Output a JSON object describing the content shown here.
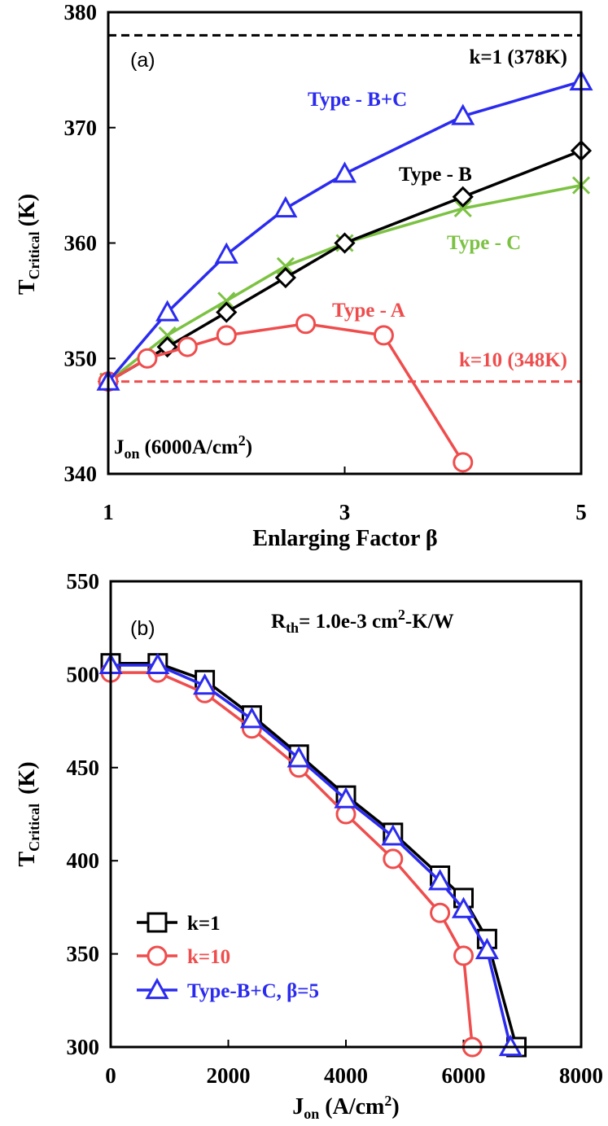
{
  "chart_data": [
    {
      "type": "line",
      "panel_label": "(a)",
      "xlabel": "Enlarging Factor β",
      "ylabel_main": "T",
      "ylabel_sub": "Critical",
      "ylabel_unit": "(K)",
      "xlim": [
        1,
        5
      ],
      "ylim": [
        340,
        380
      ],
      "xticks": [
        1,
        3,
        5
      ],
      "yticks": [
        340,
        350,
        360,
        370,
        380
      ],
      "condition": {
        "prefix": "J",
        "sub": "on",
        "value": "(6000A/cm",
        "sup": "2",
        "close": ")"
      },
      "reference_lines": [
        {
          "name": "k=1",
          "label": "k=1 (378K)",
          "y": 378,
          "color": "#000000"
        },
        {
          "name": "k=10",
          "label": "k=10 (348K)",
          "y": 348,
          "color": "#ef4d4d"
        }
      ],
      "series": [
        {
          "name": "Type - A",
          "color": "#ef4d4d",
          "marker": "circle",
          "x": [
            1,
            1.33,
            1.67,
            2,
            2.67,
            3.33,
            4
          ],
          "y": [
            348,
            350,
            351,
            352,
            353,
            352,
            341
          ]
        },
        {
          "name": "Type - B",
          "color": "#000000",
          "marker": "diamond",
          "x": [
            1,
            1.5,
            2,
            2.5,
            3,
            4,
            5
          ],
          "y": [
            348,
            351,
            354,
            357,
            360,
            364,
            368
          ]
        },
        {
          "name": "Type - C",
          "color": "#7cc242",
          "marker": "x",
          "x": [
            1,
            1.5,
            2,
            2.5,
            3,
            4,
            5
          ],
          "y": [
            348,
            352,
            355,
            358,
            360,
            363,
            365
          ]
        },
        {
          "name": "Type - B+C",
          "color": "#2b2bef",
          "marker": "triangle",
          "x": [
            1,
            1.5,
            2,
            2.5,
            3,
            4,
            5
          ],
          "y": [
            348,
            354,
            359,
            363,
            366,
            371,
            374
          ]
        }
      ]
    },
    {
      "type": "line",
      "panel_label": "(b)",
      "xlabel_main": "J",
      "xlabel_sub": "on",
      "xlabel_unit": " (A/cm",
      "xlabel_sup": "2",
      "xlabel_close": ")",
      "ylabel_main": "T",
      "ylabel_sub": "Critical",
      "ylabel_unit": " (K)",
      "xlim": [
        0,
        8000
      ],
      "ylim": [
        300,
        550
      ],
      "xticks": [
        0,
        2000,
        4000,
        6000,
        8000
      ],
      "yticks": [
        300,
        350,
        400,
        450,
        500,
        550
      ],
      "condition": {
        "prefix": "R",
        "sub": "th",
        "value": "= 1.0e-3 cm",
        "sup": "2",
        "close": "-K/W"
      },
      "series": [
        {
          "name": "k=1",
          "color": "#000000",
          "marker": "square",
          "x": [
            0,
            800,
            1600,
            2400,
            3200,
            4000,
            4800,
            5600,
            6000,
            6400,
            6900
          ],
          "y": [
            506,
            506,
            497,
            478,
            457,
            435,
            415,
            392,
            380,
            358,
            300
          ]
        },
        {
          "name": "k=10",
          "color": "#ef4d4d",
          "marker": "circle",
          "x": [
            0,
            800,
            1600,
            2400,
            3200,
            4000,
            4800,
            5600,
            6000,
            6150
          ],
          "y": [
            501,
            501,
            490,
            471,
            450,
            425,
            401,
            372,
            349,
            300
          ]
        },
        {
          "name": "Type-B+C, β=5",
          "color": "#2b2bef",
          "marker": "triangle",
          "x": [
            0,
            800,
            1600,
            2400,
            3200,
            4000,
            4800,
            5600,
            6000,
            6400,
            6800
          ],
          "y": [
            505,
            505,
            494,
            476,
            455,
            433,
            413,
            389,
            374,
            352,
            300
          ]
        }
      ]
    }
  ]
}
